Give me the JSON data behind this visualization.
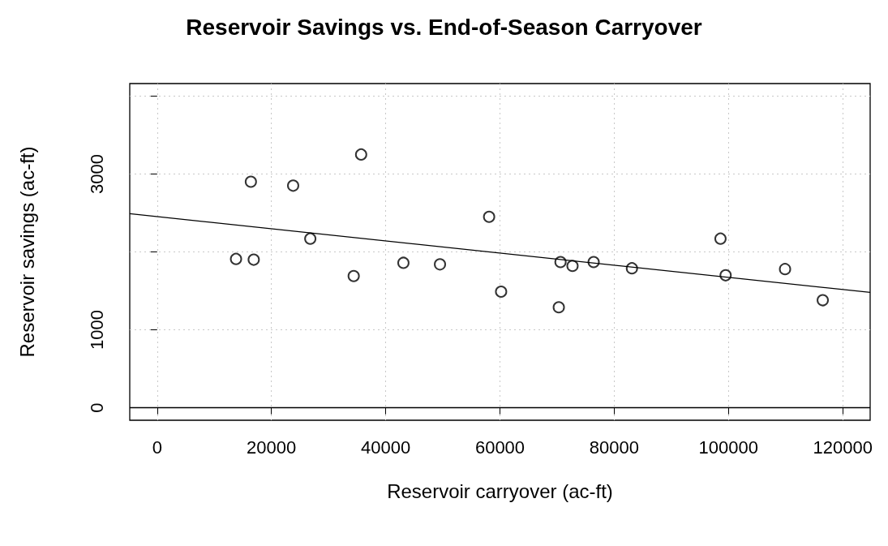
{
  "chart_data": {
    "type": "scatter",
    "title": "Reservoir Savings vs. End-of-Season Carryover",
    "xlabel": "Reservoir carryover (ac-ft)",
    "ylabel": "Reservoir savings (ac-ft)",
    "series": [
      {
        "color": "#000000",
        "marker": "circle",
        "x": [
          13800,
          16400,
          16900,
          23800,
          26800,
          34400,
          35700,
          43100,
          49500,
          58100,
          60200,
          70300,
          70600,
          72700,
          76400,
          83100,
          98600,
          99500,
          109900,
          116500
        ],
        "values": [
          1910,
          2900,
          1900,
          2850,
          2170,
          1690,
          3250,
          1860,
          1840,
          2450,
          1490,
          1290,
          1870,
          1820,
          1870,
          1790,
          2170,
          1700,
          1780,
          1380
        ]
      },
      {
        "type": "line",
        "color": "#000000",
        "marker": "none",
        "line_style": "solid",
        "x": [
          -4800,
          124800
        ],
        "values": [
          2490,
          1480
        ]
      }
    ],
    "xlim": [
      -4800,
      124800
    ],
    "xticks": [
      0,
      20000,
      40000,
      60000,
      80000,
      100000,
      120000
    ],
    "ylim": [
      -160,
      4160
    ],
    "yticks": [
      0,
      1000,
      {
        "value": 2000,
        "label": null
      },
      3000,
      {
        "value": 4000,
        "label": null
      }
    ],
    "ref_lines": [
      {
        "axis": "y",
        "value": 0,
        "color": "#000000",
        "line_style": "solid"
      }
    ],
    "grid": true
  }
}
